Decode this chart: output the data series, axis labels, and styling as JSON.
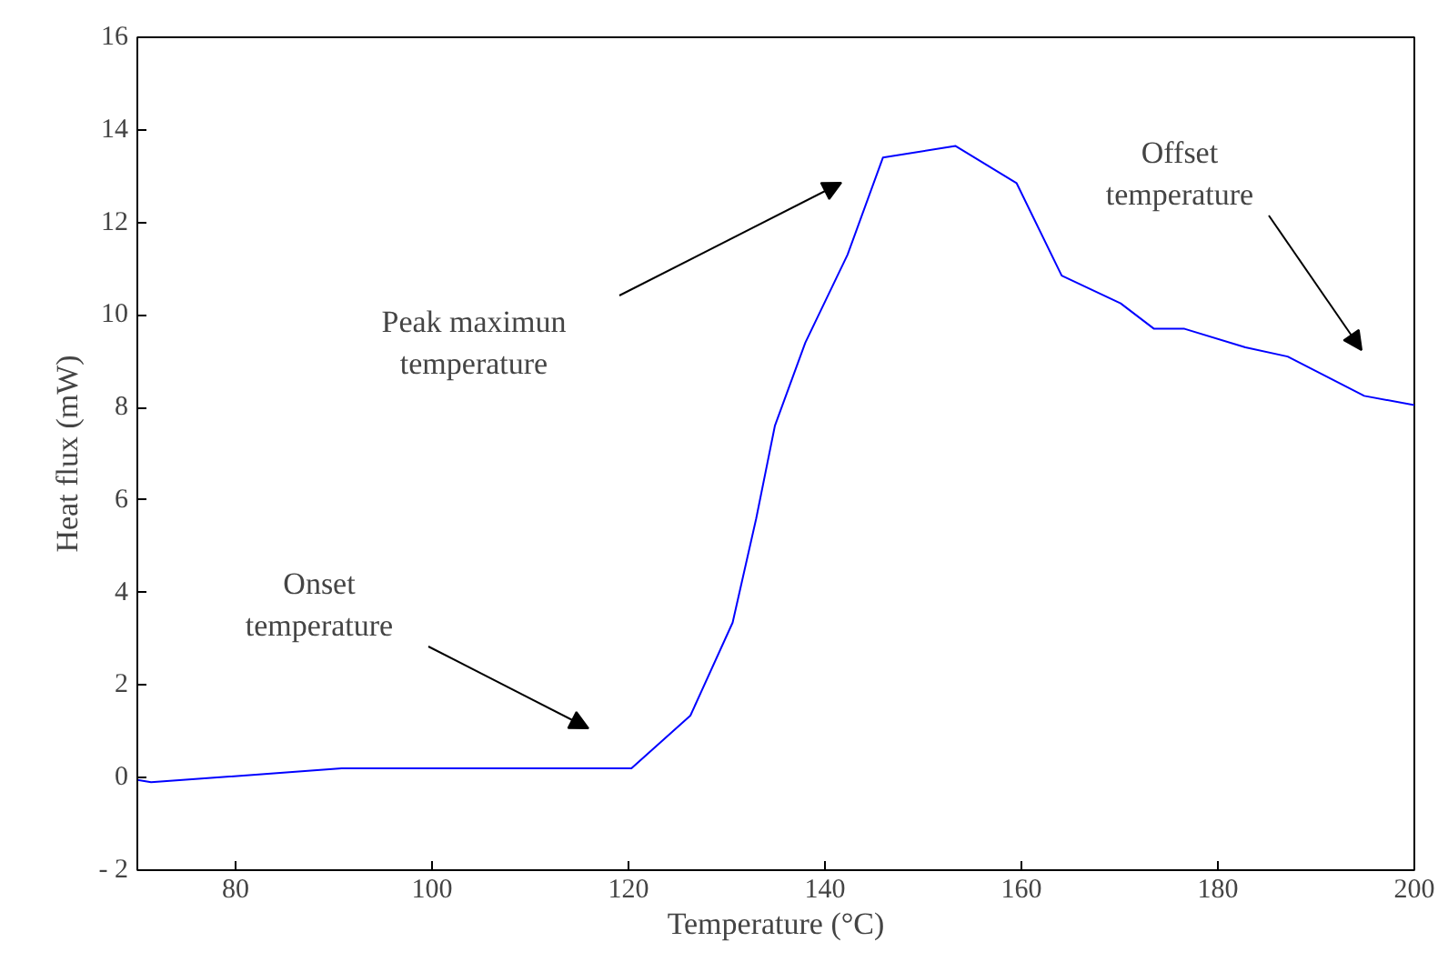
{
  "chart_data": {
    "type": "line",
    "xlabel": "Temperature (°C)",
    "ylabel": "Heat flux (mW)",
    "x": [
      70,
      71.4,
      90.8,
      120.3,
      126.3,
      130.6,
      133,
      134.9,
      138,
      142.3,
      145.9,
      153.3,
      159.5,
      164.1,
      170.1,
      173.5,
      176.6,
      182.8,
      187.1,
      194.9,
      200
    ],
    "series": [
      {
        "color": "#0000ff",
        "values": [
          -0.05,
          -0.1,
          0.2,
          0.2,
          1.34,
          3.35,
          5.6,
          7.6,
          9.4,
          11.3,
          13.4,
          13.65,
          12.85,
          10.85,
          10.25,
          9.7,
          9.7,
          9.3,
          9.1,
          8.25,
          8.05
        ]
      }
    ],
    "xlim": [
      70,
      200
    ],
    "ylim": [
      -2,
      16
    ],
    "xticks": [
      80,
      100,
      120,
      140,
      160,
      180,
      200
    ],
    "yticks": [
      {
        "value": -2,
        "label": "- 2"
      },
      0,
      2,
      4,
      6,
      8,
      10,
      12,
      14,
      16
    ],
    "annotations": [
      "Onset\ntemperature",
      "Peak maximun\ntemperature",
      "Offset\ntemperature"
    ],
    "line_style": "solid"
  }
}
